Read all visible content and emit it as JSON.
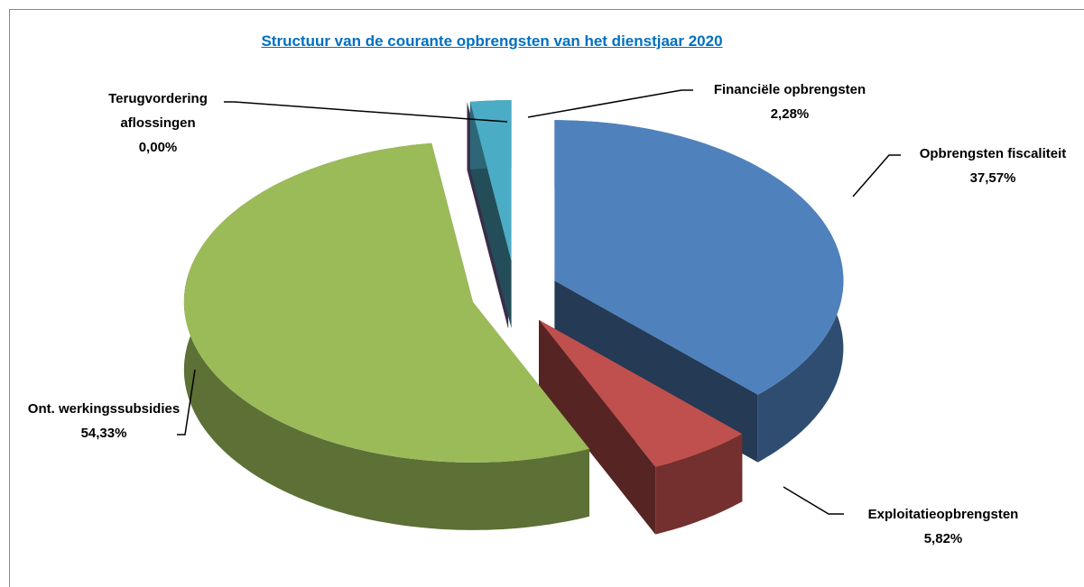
{
  "chart_data": {
    "type": "pie",
    "title": "Structuur van de courante opbrengsten van het dienstjaar 2020",
    "categories": [
      "Opbrengsten fiscaliteit",
      "Exploitatieopbrengsten",
      "Ont. werkingssubsidies",
      "Terugvordering aflossingen",
      "Financiële opbrengsten"
    ],
    "values": [
      37.57,
      5.82,
      54.33,
      0.0,
      2.28
    ],
    "value_labels": [
      "37,57%",
      "5,82%",
      "54,33%",
      "0,00%",
      "2,28%"
    ],
    "colors": [
      "#4f81bd",
      "#c0504d",
      "#9bbb59",
      "#8064a2",
      "#4bacc6"
    ]
  }
}
